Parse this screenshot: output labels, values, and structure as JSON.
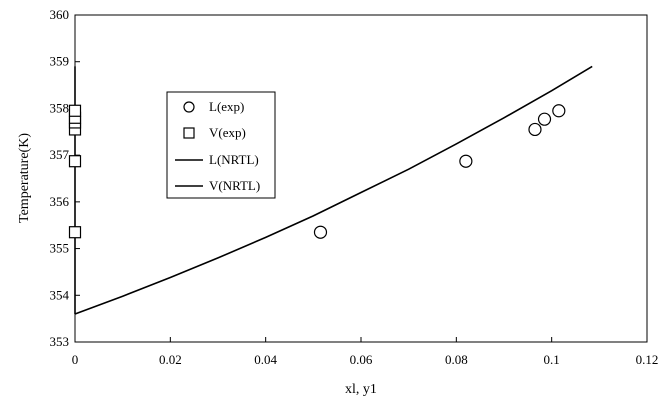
{
  "chart_data": {
    "type": "scatter",
    "title": "",
    "xlabel": "xl, y1",
    "ylabel": "Temperature(K)",
    "xlim": [
      0,
      0.12
    ],
    "ylim": [
      353,
      360
    ],
    "x_ticks": [
      0,
      0.02,
      0.04,
      0.06,
      0.08,
      0.1,
      0.12
    ],
    "x_tick_labels": [
      "0",
      "0.02",
      "0.04",
      "0.06",
      "0.08",
      "0.1",
      "0.12"
    ],
    "y_ticks": [
      353,
      354,
      355,
      356,
      357,
      358,
      359,
      360
    ],
    "y_tick_labels": [
      "353",
      "354",
      "355",
      "356",
      "357",
      "358",
      "359",
      "360"
    ],
    "grid": false,
    "legend_position": "upper-left",
    "series": [
      {
        "name": "L(exp)",
        "kind": "marker",
        "marker": "circle",
        "x": [
          0.0515,
          0.082,
          0.0965,
          0.0985,
          0.1015
        ],
        "y": [
          355.35,
          356.87,
          357.55,
          357.77,
          357.95
        ]
      },
      {
        "name": "V(exp)",
        "kind": "marker",
        "marker": "square",
        "x": [
          0.0,
          0.0,
          0.0,
          0.0,
          0.0,
          0.0
        ],
        "y": [
          355.35,
          356.87,
          357.55,
          357.7,
          357.8,
          357.95
        ]
      },
      {
        "name": "L(NRTL)",
        "kind": "line",
        "x": [
          0.0,
          0.01,
          0.02,
          0.03,
          0.04,
          0.05,
          0.06,
          0.07,
          0.08,
          0.09,
          0.1,
          0.1085
        ],
        "y": [
          353.6,
          353.98,
          354.38,
          354.8,
          355.24,
          355.7,
          356.2,
          356.7,
          357.24,
          357.8,
          358.38,
          358.9
        ]
      },
      {
        "name": "V(NRTL)",
        "kind": "line",
        "x": [
          0.0,
          0.0,
          0.0
        ],
        "y": [
          353.6,
          356.0,
          358.9
        ]
      }
    ]
  }
}
